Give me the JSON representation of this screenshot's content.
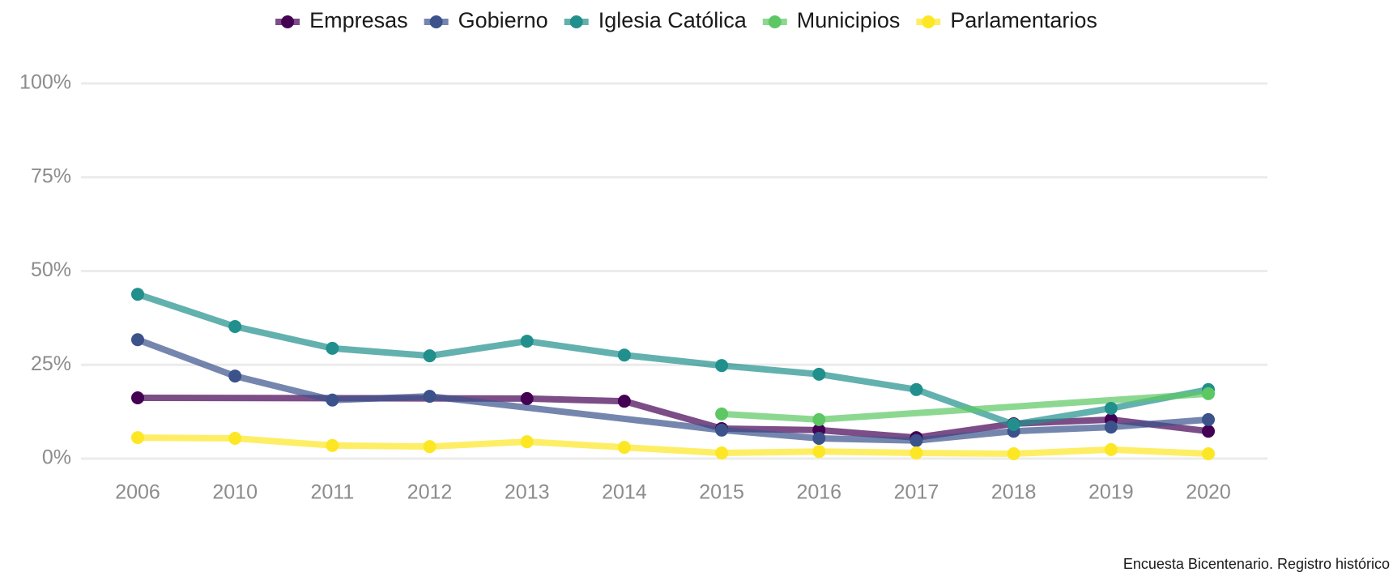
{
  "chart_data": {
    "type": "line",
    "caption": "Encuesta Bicentenario. Registro histórico",
    "categories": [
      "2006",
      "2010",
      "2011",
      "2012",
      "2013",
      "2014",
      "2015",
      "2016",
      "2017",
      "2018",
      "2019",
      "2020"
    ],
    "series": [
      {
        "name": "Empresas",
        "color": "#440154",
        "values": [
          16.2,
          null,
          null,
          null,
          16,
          15.3,
          8,
          7.6,
          5.6,
          9.3,
          10.4,
          7.3
        ]
      },
      {
        "name": "Gobierno",
        "color": "#3b528b",
        "values": [
          31.7,
          22,
          15.6,
          16.6,
          null,
          null,
          7.6,
          5.4,
          4.8,
          7.3,
          8.4,
          10.4
        ]
      },
      {
        "name": "Iglesia Católica",
        "color": "#21908c",
        "values": [
          43.8,
          35.2,
          29.4,
          27.4,
          31.3,
          27.6,
          24.8,
          22.5,
          18.4,
          9.1,
          13.4,
          18.4
        ]
      },
      {
        "name": "Municipios",
        "color": "#5dc863",
        "values": [
          null,
          null,
          null,
          null,
          null,
          null,
          11.9,
          10.4,
          null,
          null,
          null,
          17.3
        ]
      },
      {
        "name": "Parlamentarios",
        "color": "#fde725",
        "values": [
          5.6,
          5.4,
          3.5,
          3.2,
          4.5,
          3,
          1.5,
          1.9,
          1.5,
          1.3,
          2.4,
          1.3
        ]
      }
    ],
    "ylim": [
      0,
      100
    ],
    "yticks": [
      {
        "value": 0,
        "label": "0%"
      },
      {
        "value": 25,
        "label": "25%"
      },
      {
        "value": 50,
        "label": "50%"
      },
      {
        "value": 75,
        "label": "75%"
      },
      {
        "value": 100,
        "label": "100%"
      }
    ],
    "grid": true,
    "legend": "top"
  }
}
